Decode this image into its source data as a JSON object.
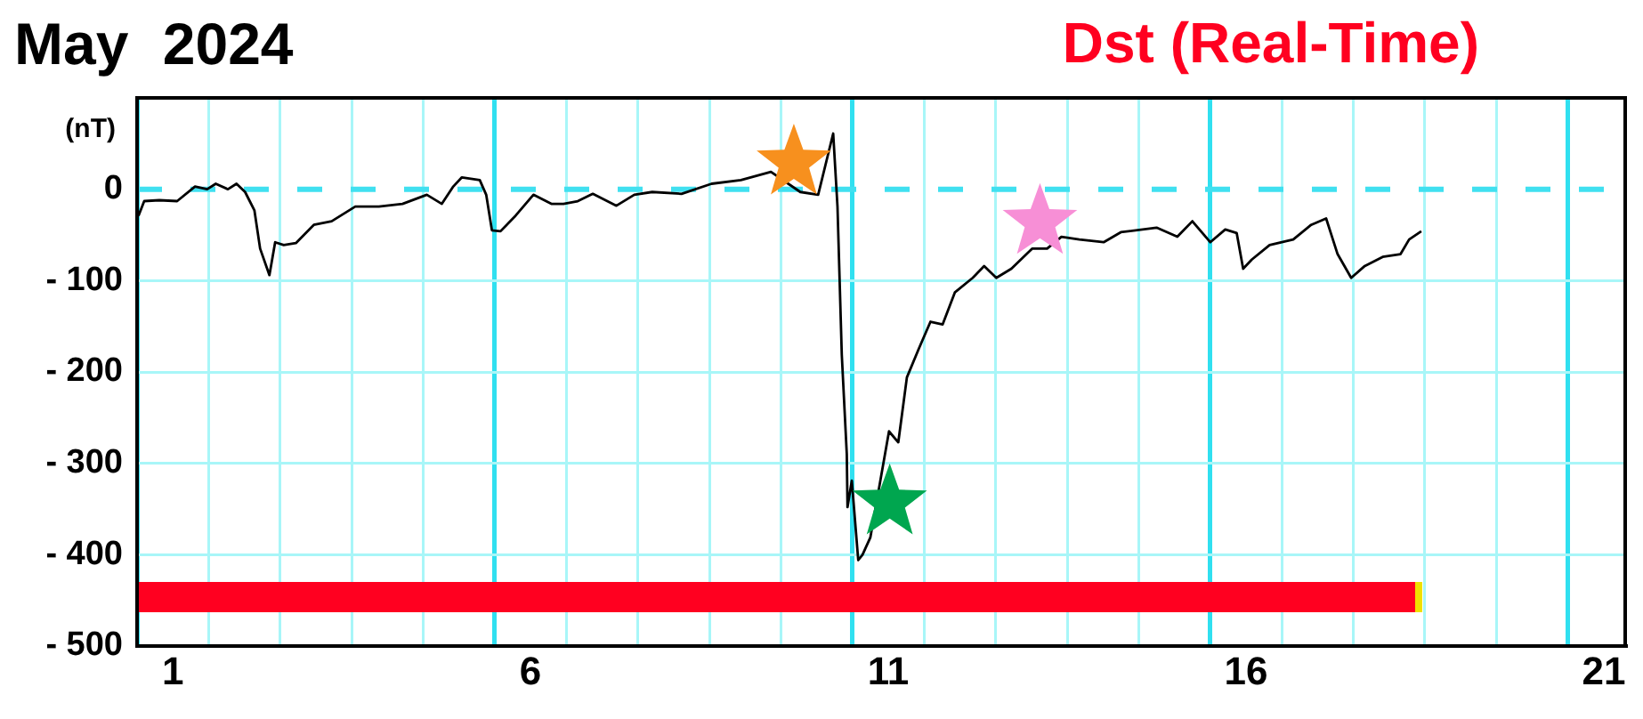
{
  "chart_data": {
    "type": "line",
    "title": "May 2024",
    "subtitle": "Dst (Real-Time)",
    "ylabel": "(nT)",
    "xlim": [
      1,
      21.8
    ],
    "ylim": [
      -500,
      100
    ],
    "xticks": [
      {
        "value": 1,
        "label": null
      },
      {
        "value": 1.5,
        "label": "1"
      },
      {
        "value": 2,
        "label": null
      },
      {
        "value": 3,
        "label": null
      },
      {
        "value": 4,
        "label": null
      },
      {
        "value": 5,
        "label": null
      },
      {
        "value": 6,
        "label": null
      },
      {
        "value": 6.5,
        "label": "6"
      },
      {
        "value": 7,
        "label": null
      },
      {
        "value": 8,
        "label": null
      },
      {
        "value": 9,
        "label": null
      },
      {
        "value": 10,
        "label": null
      },
      {
        "value": 11,
        "label": null
      },
      {
        "value": 11.5,
        "label": "11"
      },
      {
        "value": 12,
        "label": null
      },
      {
        "value": 13,
        "label": null
      },
      {
        "value": 14,
        "label": null
      },
      {
        "value": 15,
        "label": null
      },
      {
        "value": 16,
        "label": null
      },
      {
        "value": 16.5,
        "label": "16"
      },
      {
        "value": 17,
        "label": null
      },
      {
        "value": 18,
        "label": null
      },
      {
        "value": 19,
        "label": null
      },
      {
        "value": 20,
        "label": null
      },
      {
        "value": 21,
        "label": null
      },
      {
        "value": 21.5,
        "label": "21"
      }
    ],
    "yticks": [
      {
        "value": -500,
        "label": "- 500"
      },
      {
        "value": -400,
        "label": "- 400"
      },
      {
        "value": -300,
        "label": "- 300"
      },
      {
        "value": -200,
        "label": "- 200"
      },
      {
        "value": -100,
        "label": "- 100"
      },
      0,
      {
        "value": 100,
        "label": null
      }
    ],
    "grid": true,
    "legend": false,
    "ref_lines": [
      {
        "axis": "y",
        "value": 0,
        "color": "#40e0f0",
        "line_style": "dashed"
      }
    ],
    "series": [
      {
        "color": "#000000",
        "marker": "none",
        "x": [
          1.02,
          1.1,
          1.31,
          1.56,
          1.81,
          1.98,
          2.1,
          2.27,
          2.39,
          2.51,
          2.64,
          2.72,
          2.85,
          2.93,
          3.05,
          3.22,
          3.47,
          3.72,
          4.05,
          4.38,
          4.71,
          5.05,
          5.26,
          5.42,
          5.54,
          5.79,
          5.88,
          5.96,
          6.08,
          6.29,
          6.54,
          6.79,
          6.96,
          7.16,
          7.37,
          7.7,
          7.95,
          8.2,
          8.61,
          9.03,
          9.44,
          9.86,
          10.27,
          10.52,
          10.73,
          10.79,
          10.85,
          10.92,
          10.93,
          10.99,
          11.08,
          11.14,
          11.25,
          11.35,
          11.51,
          11.64,
          11.76,
          11.93,
          12.09,
          12.26,
          12.43,
          12.68,
          12.84,
          13.01,
          13.22,
          13.51,
          13.72,
          13.92,
          14.17,
          14.51,
          14.75,
          15.25,
          15.54,
          15.75,
          16,
          16.21,
          16.37,
          16.46,
          16.58,
          16.83,
          17.16,
          17.41,
          17.62,
          17.78,
          17.97,
          18.16,
          18.41,
          18.66,
          18.78,
          18.95
        ],
        "values": [
          -29,
          -13,
          -12,
          -13,
          3,
          0,
          6,
          0,
          6,
          -3,
          -23,
          -65,
          -94,
          -58,
          -61,
          -59,
          -39,
          -35,
          -19,
          -19,
          -16,
          -6,
          -16,
          3,
          13,
          10,
          -6,
          -45,
          -46,
          -29,
          -6,
          -16,
          -16,
          -13,
          -5,
          -18,
          -6,
          -3,
          -5,
          6,
          10,
          19,
          -3,
          -6,
          61,
          -19,
          -181,
          -290,
          -348,
          -319,
          -406,
          -400,
          -381,
          null,
          -265,
          -277,
          -206,
          -174,
          -145,
          -148,
          -113,
          -97,
          -84,
          -97,
          -87,
          -65,
          -65,
          -52,
          -55,
          -58,
          -47,
          -42,
          -52,
          -35,
          -58,
          -44,
          -48,
          -87,
          -77,
          -61,
          -55,
          -39,
          -32,
          -71,
          -97,
          -84,
          -74,
          -71,
          -55,
          -46
        ]
      },
      {
        "type": "scatter",
        "marker": "star",
        "colors": [
          "#f7901e",
          "#00a64f",
          "#f78fd6"
        ],
        "x": [
          10.18,
          11.52,
          13.62
        ],
        "values": [
          29,
          -343,
          -36
        ]
      }
    ]
  }
}
